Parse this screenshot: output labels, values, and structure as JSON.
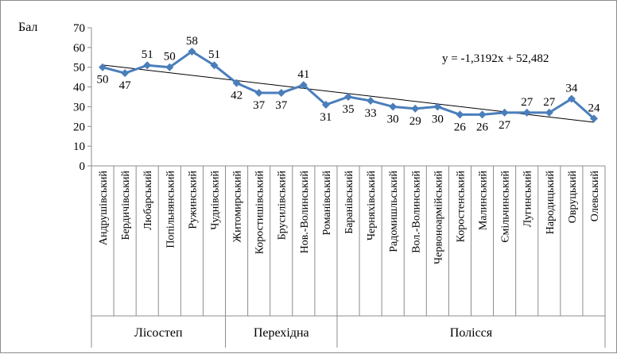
{
  "chart_data": {
    "type": "line",
    "title": "",
    "xlabel": "",
    "ylabel": "Бал",
    "ylim": [
      0,
      70
    ],
    "yticks": [
      0,
      10,
      20,
      30,
      40,
      50,
      60,
      70
    ],
    "grid": false,
    "legend": "none",
    "categories": [
      "Андрушівський",
      "Бердичівський",
      "Любарський",
      "Попільнянський",
      "Ружинський",
      "Чуднівський",
      "Житомирський",
      "Коростишівський",
      "Брусилівський",
      "Нов.-Волинський",
      "Романівський",
      "Баранівський",
      "Черняхівський",
      "Радомишльський",
      "Вол.-Волинський",
      "Червоноармійський",
      "Коростенський",
      "Малинський",
      "Ємільчинський",
      "Лугинський",
      "Народицький",
      "Овруцький",
      "Олевський"
    ],
    "series": [
      {
        "name": "",
        "values": [
          50,
          47,
          51,
          50,
          58,
          51,
          42,
          37,
          37,
          41,
          31,
          35,
          33,
          30,
          29,
          30,
          26,
          26,
          27,
          27,
          27,
          34,
          24
        ],
        "color": "#4a7ebb"
      }
    ],
    "trendline": {
      "equation": "y = -1,3192x  + 52,482",
      "slope": -1.3192,
      "intercept": 52.482,
      "color": "#000000"
    },
    "groups": [
      {
        "label": "Лісостеп",
        "count": 6
      },
      {
        "label": "Перехідна",
        "count": 5
      },
      {
        "label": "Полісся",
        "count": 12
      }
    ]
  }
}
